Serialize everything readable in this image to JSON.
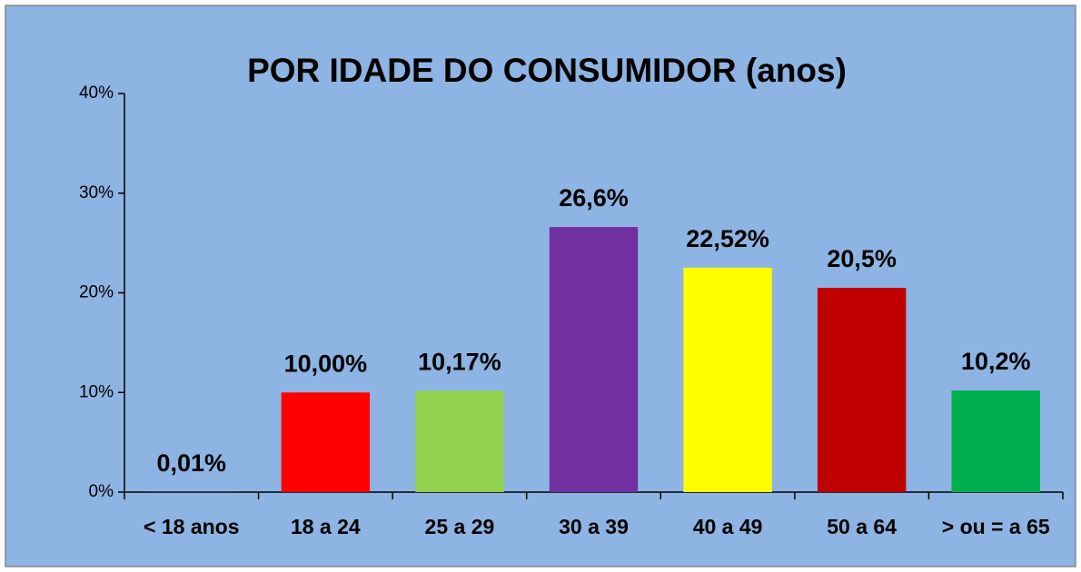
{
  "chart_data": {
    "type": "bar",
    "title": "POR IDADE DO CONSUMIDOR (anos)",
    "categories": [
      "< 18 anos",
      "18 a 24",
      "25 a 29",
      "30 a 39",
      "40 a 49",
      "50 a 64",
      "> ou = a 65"
    ],
    "values": [
      0.01,
      10,
      10.17,
      26.6,
      22.52,
      20.5,
      10.2
    ],
    "value_labels": [
      "0,01%",
      "10,00%",
      "10,17%",
      "26,6%",
      "22,52%",
      "20,5%",
      "10,2%"
    ],
    "colors": [
      "#4f81bd",
      "#ff0000",
      "#92d050",
      "#7030a0",
      "#ffff00",
      "#c00000",
      "#00b050"
    ],
    "ylim": [
      0,
      40
    ],
    "yticks": [
      {
        "value": 0,
        "label": "0%"
      },
      {
        "value": 10,
        "label": "10%"
      },
      {
        "value": 20,
        "label": "20%"
      },
      {
        "value": 30,
        "label": "30%"
      },
      {
        "value": 40,
        "label": "40%"
      }
    ],
    "grid": false
  }
}
